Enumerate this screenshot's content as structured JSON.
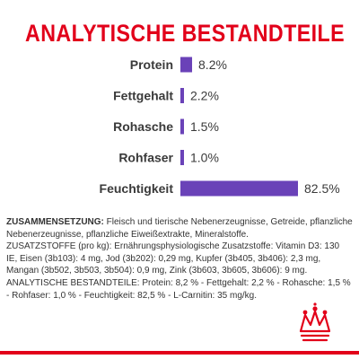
{
  "header": {
    "title": "ANALYTISCHE BESTANDTEILE"
  },
  "colors": {
    "title": "#e2001a",
    "bar": "#6a42b8",
    "accent_line": "#e2001a",
    "logo": "#e2001a"
  },
  "chart_data": {
    "type": "bar",
    "orientation": "horizontal",
    "title": "ANALYTISCHE BESTANDTEILE",
    "unit": "%",
    "categories": [
      "Protein",
      "Fettgehalt",
      "Rohasche",
      "Rohfaser",
      "Feuchtigkeit"
    ],
    "values": [
      8.2,
      2.2,
      1.5,
      1.0,
      82.5
    ],
    "value_labels": [
      "8.2%",
      "2.2%",
      "1.5%",
      "1.0%",
      "82.5%"
    ],
    "xlim": [
      0,
      82.5
    ],
    "grid": false,
    "legend": "none"
  },
  "composition": {
    "zusammensetzung_label": "ZUSAMMENSETZUNG:",
    "zusammensetzung_text": " Fleisch und tierische Nebenerzeugnisse, Getreide, pflanzliche Nebenerzeugnisse, pflanzliche Eiweißextrakte, Mineralstoffe.",
    "zusatzstoffe_label": "ZUSATZSTOFFE",
    "zusatzstoffe_text": " (pro kg): Ernährungsphysiologische Zusatzstoffe: Vitamin D3: 130 IE, Eisen (3b103): 4 mg, Jod (3b202): 0,29 mg, Kupfer (3b405, 3b406): 2,3 mg, Mangan (3b502, 3b503, 3b504): 0,9 mg, Zink (3b603, 3b605, 3b606): 9 mg.",
    "analytische_label": "ANALYTISCHE BESTANDTEILE:",
    "analytische_text": " Protein: 8,2 % - Fettgehalt: 2,2 % - Rohasche: 1,5 % - Rohfaser: 1,0 % - Feuchtigkeit: 82,5 % - L-Carnitin: 35 mg/kg."
  },
  "logo": {
    "icon": "crown-icon"
  }
}
